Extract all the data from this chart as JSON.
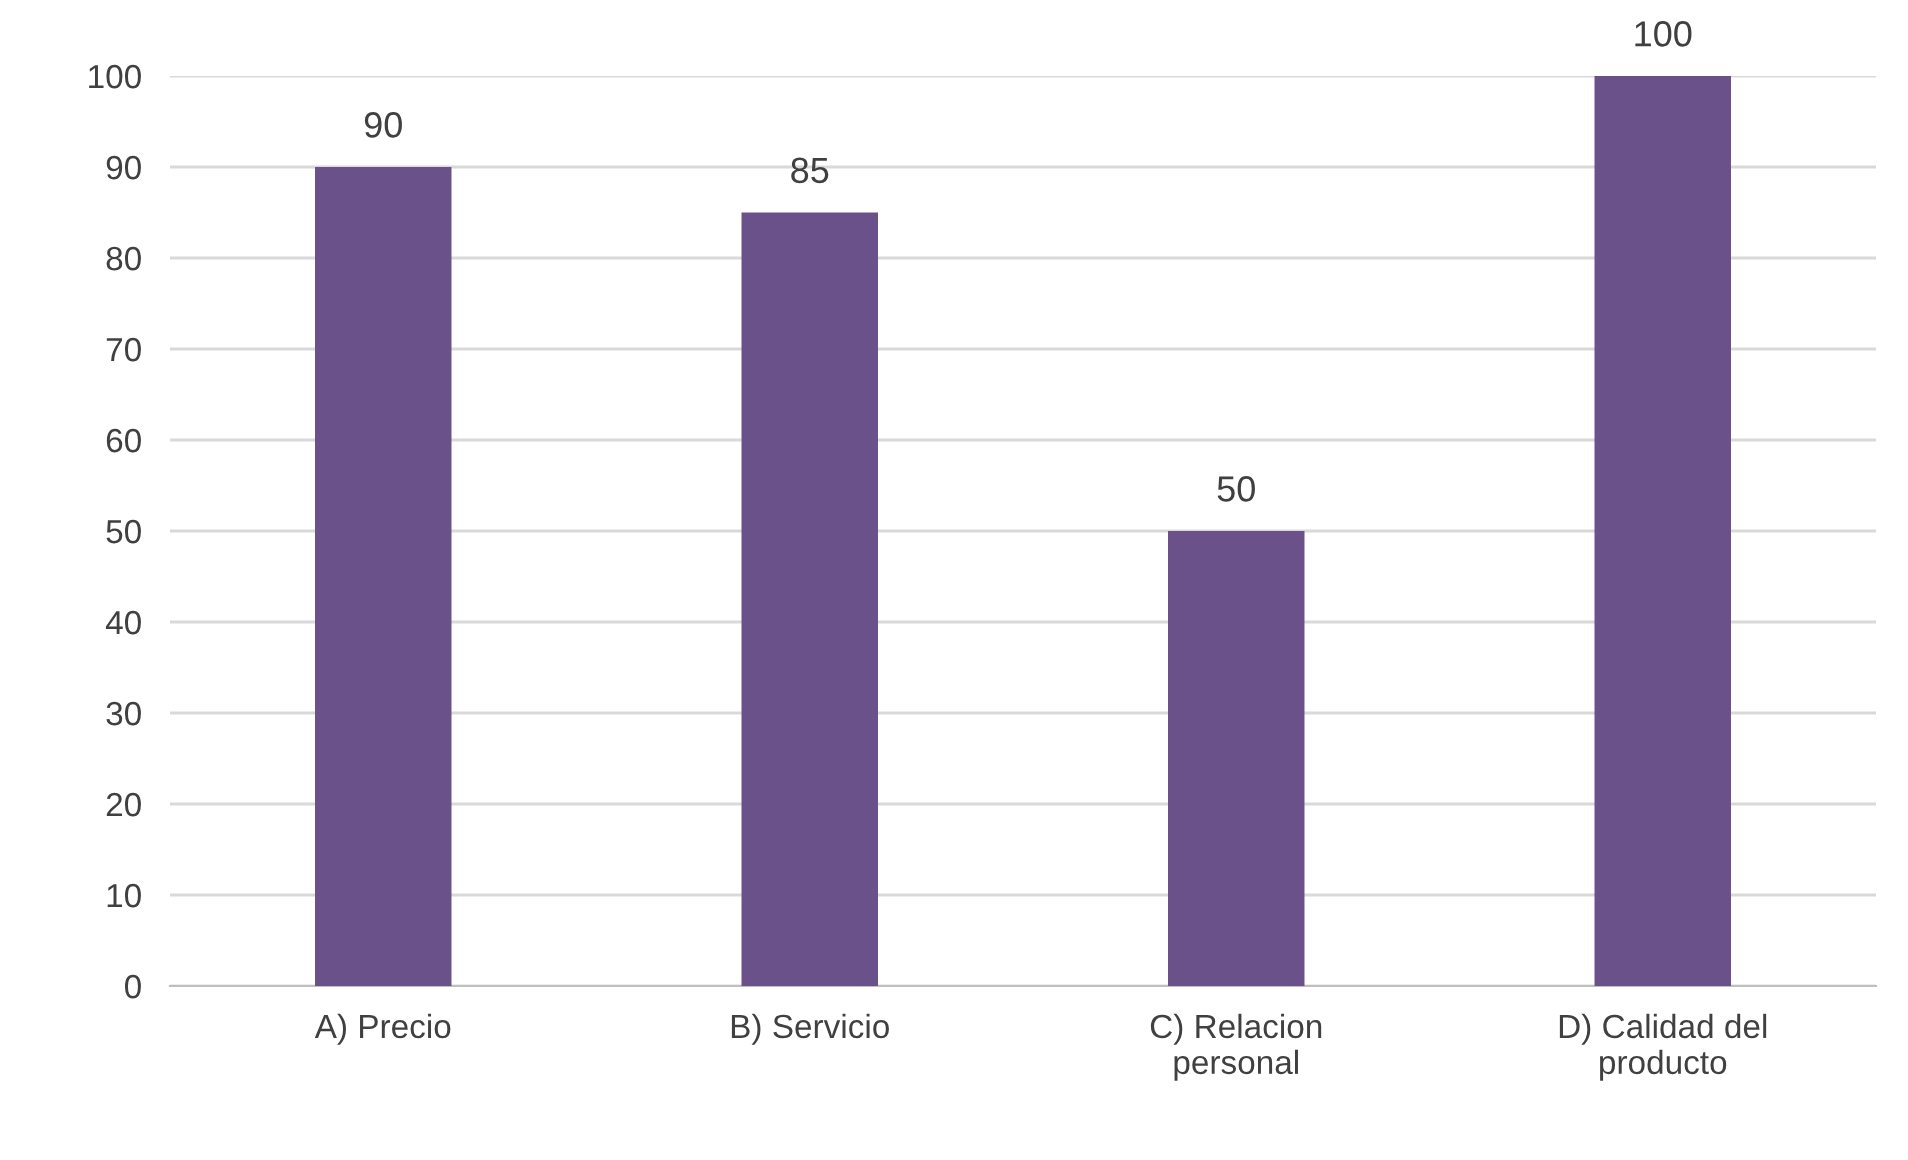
{
  "chart_data": {
    "type": "bar",
    "categories": [
      "A) Precio",
      "B) Servicio",
      "C) Relacion personal",
      "D) Calidad del producto"
    ],
    "values": [
      90,
      85,
      50,
      100
    ],
    "color": "#6a5189",
    "ylim": [
      0,
      100
    ],
    "yticks": [
      0,
      10,
      20,
      30,
      40,
      50,
      60,
      70,
      80,
      90,
      100
    ],
    "grid": "y",
    "data_labels": true,
    "legend": false
  }
}
